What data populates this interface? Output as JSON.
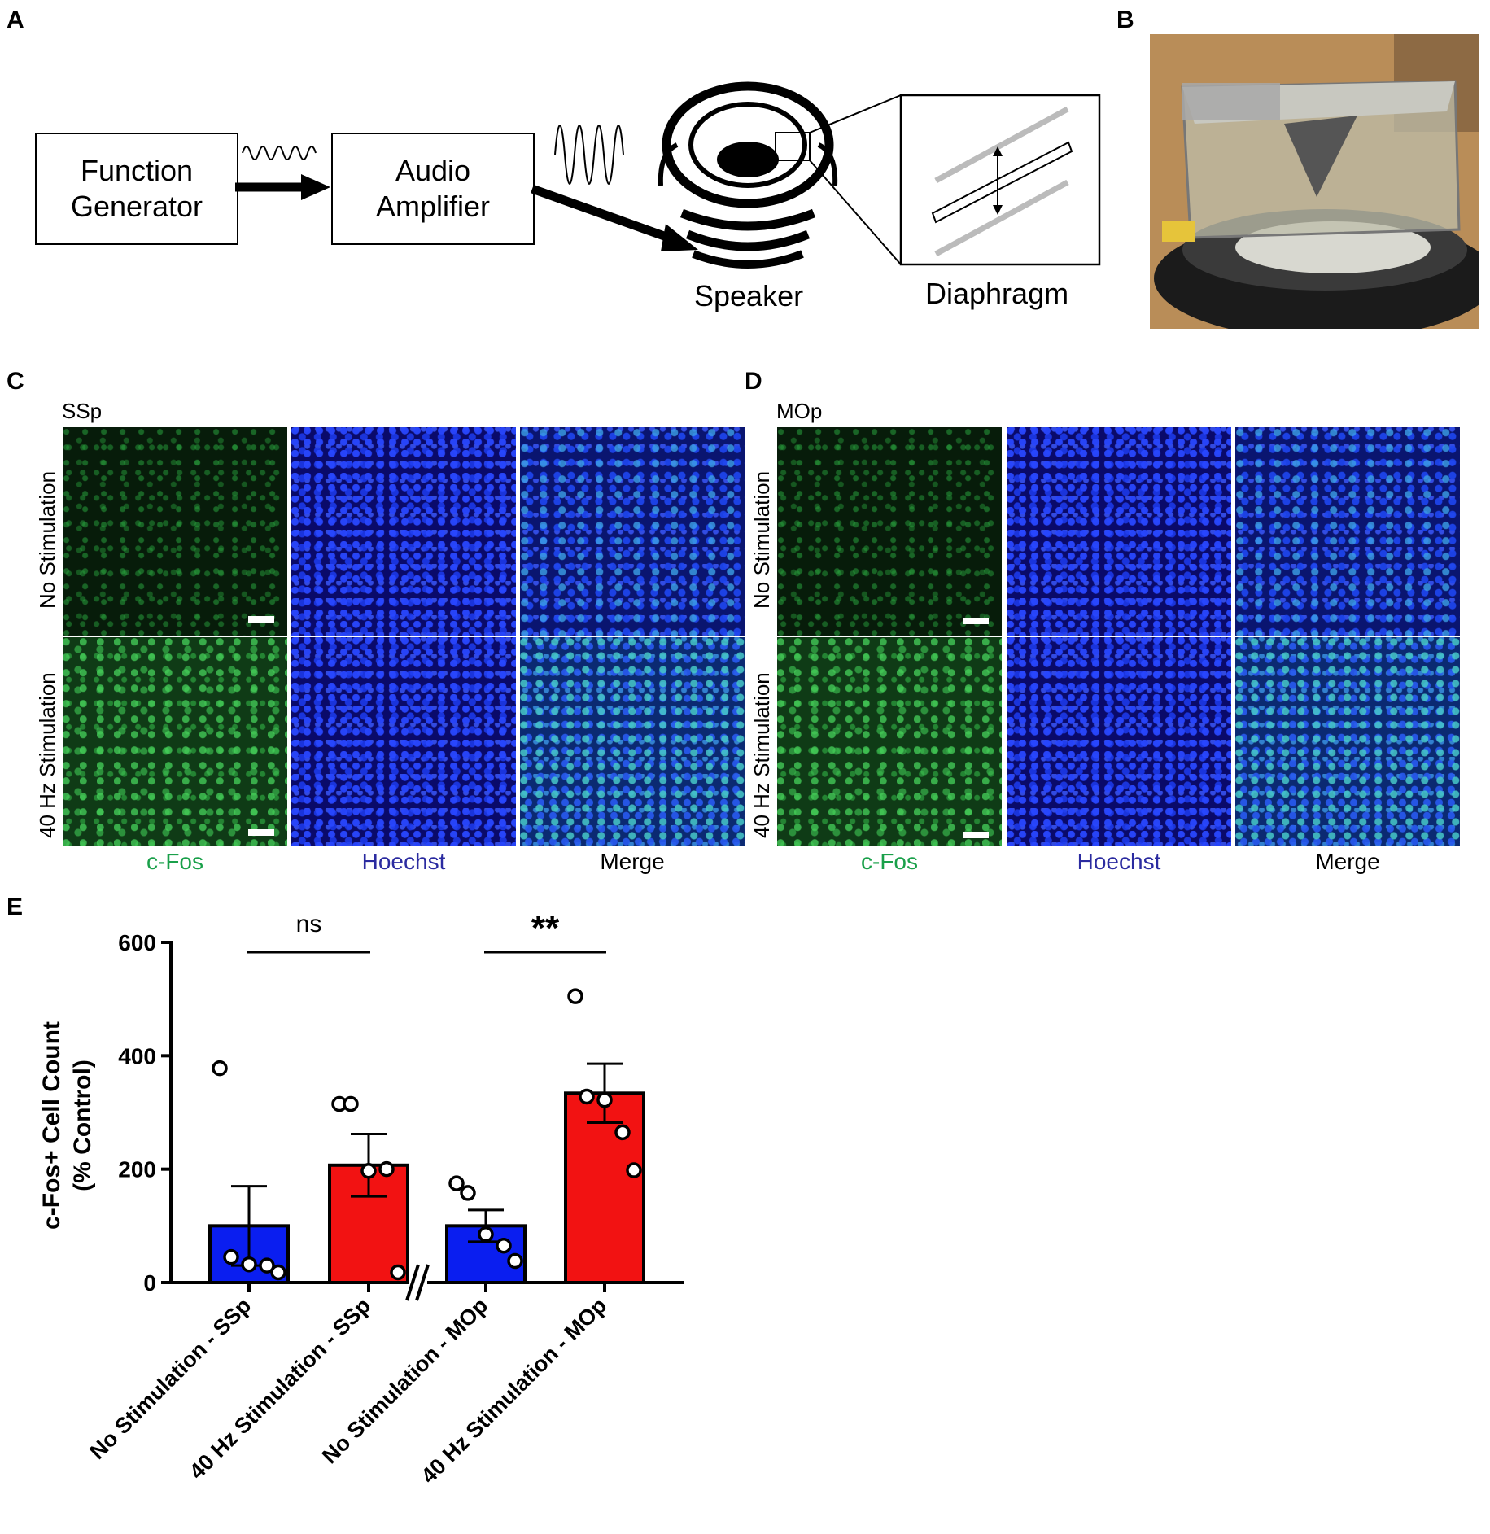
{
  "panel_letters": {
    "a": "A",
    "b": "B",
    "c": "C",
    "d": "D",
    "e": "E"
  },
  "panel_a": {
    "function_generator": [
      "Function",
      "Generator"
    ],
    "audio_amplifier": [
      "Audio",
      "Amplifier"
    ],
    "speaker": "Speaker",
    "diaphragm": "Diaphragm"
  },
  "panel_c": {
    "region": "SSp",
    "rows": [
      "No Stimulation",
      "40 Hz Stimulation"
    ],
    "columns": [
      "c-Fos",
      "Hoechst",
      "Merge"
    ]
  },
  "panel_d": {
    "region": "MOp",
    "rows": [
      "No Stimulation",
      "40 Hz Stimulation"
    ],
    "columns": [
      "c-Fos",
      "Hoechst",
      "Merge"
    ]
  },
  "colors": {
    "cfos_label": "#1aa04a",
    "hoechst_label": "#2b2ba0",
    "no_stim_bar": "#0a1ef0",
    "stim_bar": "#f21212"
  },
  "chart_data": {
    "type": "bar",
    "ylabel": [
      "c-Fos+ Cell Count",
      "(% Control)"
    ],
    "ylim": [
      0,
      600
    ],
    "yticks": [
      0,
      200,
      400,
      600
    ],
    "categories": [
      "No Stimulation - SSp",
      "40 Hz Stimulation - SSp",
      "No Stimulation - MOp",
      "40 Hz Stimulation - MOp"
    ],
    "values": [
      100,
      207,
      100,
      334
    ],
    "sem": [
      70,
      55,
      28,
      52
    ],
    "bar_colors": [
      "#0a1ef0",
      "#f21212",
      "#0a1ef0",
      "#f21212"
    ],
    "points": [
      [
        378,
        45,
        32,
        30,
        18
      ],
      [
        315,
        315,
        197,
        200,
        18
      ],
      [
        175,
        158,
        85,
        65,
        38
      ],
      [
        505,
        328,
        322,
        265,
        198
      ]
    ],
    "comparisons": [
      {
        "pair": [
          0,
          1
        ],
        "label": "ns"
      },
      {
        "pair": [
          2,
          3
        ],
        "label": "**"
      }
    ],
    "axis_break": true
  }
}
